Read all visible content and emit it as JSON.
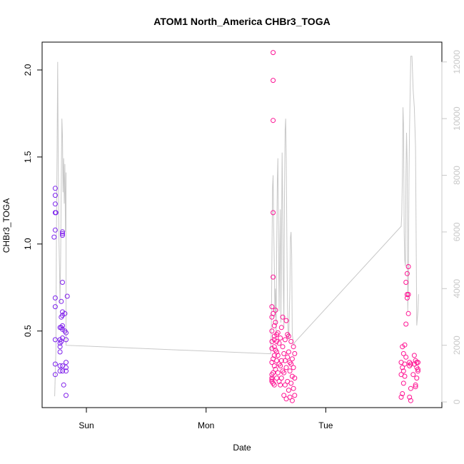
{
  "chart_data": {
    "type": "scatter",
    "title": "ATOM1 North_America CHBr3_TOGA",
    "xlabel": "Date",
    "ylabel": "CHBr3_TOGA",
    "x_ticks": [
      "Sun",
      "Mon",
      "Tue"
    ],
    "x_tick_days": [
      1,
      2,
      3
    ],
    "xlim": [
      0.63,
      3.97
    ],
    "ylim": [
      0.06,
      2.16
    ],
    "y_ticks": [
      0.5,
      1.0,
      1.5,
      2.0
    ],
    "y_tick_labels": [
      "0.5",
      "1.0",
      "1.5",
      "2.0"
    ],
    "y2lim": [
      -200,
      12700
    ],
    "y2_ticks": [
      0,
      2000,
      4000,
      6000,
      8000,
      10000,
      12000
    ],
    "y2_tick_labels": [
      "0",
      "2000",
      "4000",
      "6000",
      "8000",
      "10000",
      "12000"
    ],
    "grid": false,
    "colors": {
      "series_start": "#7a22ee",
      "series_end": "#ff1493",
      "line": "#c8c8c8",
      "axis": "#000000"
    },
    "series": [
      {
        "marker": "open-circle",
        "points": [
          [
            0.74,
            0.25
          ],
          [
            0.74,
            0.31
          ],
          [
            0.74,
            0.45
          ],
          [
            0.74,
            0.64
          ],
          [
            0.74,
            0.69
          ],
          [
            0.73,
            1.04
          ],
          [
            0.74,
            1.08
          ],
          [
            0.74,
            1.18
          ],
          [
            0.745,
            1.18
          ],
          [
            0.74,
            1.23
          ],
          [
            0.74,
            1.28
          ],
          [
            0.74,
            1.32
          ],
          [
            0.78,
            0.27
          ],
          [
            0.78,
            0.3
          ],
          [
            0.78,
            0.38
          ],
          [
            0.78,
            0.41
          ],
          [
            0.78,
            0.43
          ],
          [
            0.79,
            0.44
          ],
          [
            0.78,
            0.45
          ],
          [
            0.78,
            0.52
          ],
          [
            0.79,
            0.52
          ],
          [
            0.79,
            0.58
          ],
          [
            0.79,
            0.67
          ],
          [
            0.8,
            0.27
          ],
          [
            0.8,
            0.3
          ],
          [
            0.8,
            0.46
          ],
          [
            0.8,
            0.53
          ],
          [
            0.8,
            0.59
          ],
          [
            0.8,
            0.61
          ],
          [
            0.8,
            0.78
          ],
          [
            0.8,
            1.05
          ],
          [
            0.8,
            1.06
          ],
          [
            0.8,
            1.07
          ],
          [
            0.8,
            0.51
          ],
          [
            0.81,
            0.19
          ],
          [
            0.82,
            0.5
          ],
          [
            0.82,
            0.6
          ],
          [
            0.83,
            0.13
          ],
          [
            0.83,
            0.27
          ],
          [
            0.83,
            0.29
          ],
          [
            0.83,
            0.32
          ],
          [
            0.83,
            0.45
          ],
          [
            0.83,
            0.49
          ],
          [
            0.84,
            0.7
          ],
          [
            2.55,
            0.21
          ],
          [
            2.55,
            0.22
          ],
          [
            2.55,
            0.23
          ],
          [
            2.55,
            0.25
          ],
          [
            2.55,
            0.32
          ],
          [
            2.55,
            0.4
          ],
          [
            2.55,
            0.44
          ],
          [
            2.55,
            0.5
          ],
          [
            2.55,
            0.58
          ],
          [
            2.55,
            0.64
          ],
          [
            2.56,
            0.2
          ],
          [
            2.56,
            0.26
          ],
          [
            2.56,
            0.34
          ],
          [
            2.56,
            0.6
          ],
          [
            2.56,
            0.81
          ],
          [
            2.56,
            1.18
          ],
          [
            2.56,
            1.71
          ],
          [
            2.56,
            1.94
          ],
          [
            2.56,
            2.1
          ],
          [
            2.57,
            0.19
          ],
          [
            2.57,
            0.3
          ],
          [
            2.57,
            0.36
          ],
          [
            2.57,
            0.41
          ],
          [
            2.57,
            0.45
          ],
          [
            2.57,
            0.47
          ],
          [
            2.57,
            0.53
          ],
          [
            2.58,
            0.55
          ],
          [
            2.58,
            0.62
          ],
          [
            2.58,
            0.28
          ],
          [
            2.58,
            0.39
          ],
          [
            2.59,
            0.23
          ],
          [
            2.59,
            0.33
          ],
          [
            2.59,
            0.38
          ],
          [
            2.59,
            0.44
          ],
          [
            2.59,
            0.48
          ],
          [
            2.6,
            0.26
          ],
          [
            2.6,
            0.36
          ],
          [
            2.6,
            0.49
          ],
          [
            2.61,
            0.21
          ],
          [
            2.61,
            0.31
          ],
          [
            2.61,
            0.43
          ],
          [
            2.62,
            0.19
          ],
          [
            2.62,
            0.3
          ],
          [
            2.62,
            0.46
          ],
          [
            2.63,
            0.23
          ],
          [
            2.63,
            0.33
          ],
          [
            2.63,
            0.52
          ],
          [
            2.64,
            0.27
          ],
          [
            2.64,
            0.41
          ],
          [
            2.64,
            0.58
          ],
          [
            2.65,
            0.13
          ],
          [
            2.65,
            0.26
          ],
          [
            2.65,
            0.37
          ],
          [
            2.66,
            0.19
          ],
          [
            2.66,
            0.33
          ],
          [
            2.66,
            0.45
          ],
          [
            2.67,
            0.11
          ],
          [
            2.67,
            0.29
          ],
          [
            2.67,
            0.56
          ],
          [
            2.68,
            0.21
          ],
          [
            2.68,
            0.35
          ],
          [
            2.68,
            0.48
          ],
          [
            2.69,
            0.16
          ],
          [
            2.69,
            0.38
          ],
          [
            2.69,
            0.47
          ],
          [
            2.7,
            0.12
          ],
          [
            2.7,
            0.27
          ],
          [
            2.7,
            0.32
          ],
          [
            2.71,
            0.2
          ],
          [
            2.71,
            0.31
          ],
          [
            2.71,
            0.44
          ],
          [
            2.72,
            0.1
          ],
          [
            2.72,
            0.24
          ],
          [
            2.72,
            0.34
          ],
          [
            2.73,
            0.17
          ],
          [
            2.73,
            0.29
          ],
          [
            2.73,
            0.41
          ],
          [
            2.74,
            0.13
          ],
          [
            2.74,
            0.23
          ],
          [
            2.74,
            0.37
          ],
          [
            3.63,
            0.12
          ],
          [
            3.63,
            0.25
          ],
          [
            3.63,
            0.32
          ],
          [
            3.64,
            0.14
          ],
          [
            3.64,
            0.29
          ],
          [
            3.64,
            0.41
          ],
          [
            3.65,
            0.2
          ],
          [
            3.65,
            0.27
          ],
          [
            3.65,
            0.37
          ],
          [
            3.66,
            0.24
          ],
          [
            3.66,
            0.31
          ],
          [
            3.66,
            0.42
          ],
          [
            3.67,
            0.35
          ],
          [
            3.67,
            0.54
          ],
          [
            3.67,
            0.78
          ],
          [
            3.68,
            0.69
          ],
          [
            3.68,
            0.83
          ],
          [
            3.68,
            0.71
          ],
          [
            3.69,
            0.6
          ],
          [
            3.69,
            0.87
          ],
          [
            3.69,
            0.71
          ],
          [
            3.7,
            0.12
          ],
          [
            3.7,
            0.3
          ],
          [
            3.7,
            0.32
          ],
          [
            3.71,
            0.1
          ],
          [
            3.71,
            0.17
          ],
          [
            3.71,
            0.31
          ],
          [
            3.73,
            0.25
          ],
          [
            3.74,
            0.31
          ],
          [
            3.74,
            0.36
          ],
          [
            3.75,
            0.18
          ],
          [
            3.75,
            0.19
          ],
          [
            3.75,
            0.33
          ],
          [
            3.76,
            0.23
          ],
          [
            3.76,
            0.29
          ],
          [
            3.76,
            0.32
          ],
          [
            3.77,
            0.27
          ],
          [
            3.77,
            0.32
          ],
          [
            3.77,
            0.28
          ]
        ]
      },
      {
        "name": "line",
        "axis": "right",
        "points": [
          [
            0.735,
            200
          ],
          [
            0.745,
            1800
          ],
          [
            0.75,
            6000
          ],
          [
            0.755,
            9000
          ],
          [
            0.76,
            12000
          ],
          [
            0.765,
            8500
          ],
          [
            0.77,
            5800
          ],
          [
            0.775,
            4800
          ],
          [
            0.78,
            3500
          ],
          [
            0.785,
            5200
          ],
          [
            0.79,
            7600
          ],
          [
            0.795,
            10000
          ],
          [
            0.8,
            9400
          ],
          [
            0.805,
            7400
          ],
          [
            0.81,
            8600
          ],
          [
            0.815,
            7000
          ],
          [
            0.82,
            8400
          ],
          [
            0.825,
            6000
          ],
          [
            0.83,
            8100
          ],
          [
            0.83,
            2000
          ],
          [
            2.54,
            1700
          ],
          [
            2.545,
            2600
          ],
          [
            2.55,
            5000
          ],
          [
            2.555,
            7600
          ],
          [
            2.56,
            8000
          ],
          [
            2.565,
            6200
          ],
          [
            2.57,
            4800
          ],
          [
            2.575,
            3000
          ],
          [
            2.58,
            4000
          ],
          [
            2.585,
            2400
          ],
          [
            2.59,
            5500
          ],
          [
            2.595,
            7800
          ],
          [
            2.6,
            8600
          ],
          [
            2.605,
            6000
          ],
          [
            2.61,
            3200
          ],
          [
            2.615,
            5200
          ],
          [
            2.62,
            6800
          ],
          [
            2.625,
            2800
          ],
          [
            2.63,
            5400
          ],
          [
            2.635,
            8800
          ],
          [
            2.64,
            7000
          ],
          [
            2.645,
            4400
          ],
          [
            2.65,
            2600
          ],
          [
            2.655,
            7200
          ],
          [
            2.66,
            9600
          ],
          [
            2.665,
            10000
          ],
          [
            2.67,
            8600
          ],
          [
            2.675,
            5600
          ],
          [
            2.68,
            3400
          ],
          [
            2.685,
            2300
          ],
          [
            2.69,
            2200
          ],
          [
            2.695,
            3000
          ],
          [
            2.7,
            4000
          ],
          [
            2.705,
            5800
          ],
          [
            2.71,
            6000
          ],
          [
            2.715,
            5200
          ],
          [
            2.72,
            2400
          ],
          [
            2.725,
            2200
          ],
          [
            2.73,
            2000
          ],
          [
            2.74,
            2100
          ],
          [
            3.63,
            6200
          ],
          [
            3.635,
            6600
          ],
          [
            3.64,
            8000
          ],
          [
            3.645,
            10400
          ],
          [
            3.65,
            9800
          ],
          [
            3.655,
            6000
          ],
          [
            3.66,
            5000
          ],
          [
            3.665,
            4800
          ],
          [
            3.67,
            8000
          ],
          [
            3.675,
            9500
          ],
          [
            3.68,
            8400
          ],
          [
            3.685,
            3200
          ],
          [
            3.69,
            4200
          ],
          [
            3.695,
            7800
          ],
          [
            3.7,
            9600
          ],
          [
            3.705,
            11000
          ],
          [
            3.71,
            12200
          ],
          [
            3.72,
            12200
          ],
          [
            3.73,
            11000
          ],
          [
            3.74,
            10400
          ],
          [
            3.75,
            9000
          ],
          [
            3.76,
            2700
          ],
          [
            3.77,
            3200
          ],
          [
            3.775,
            3800
          ]
        ]
      }
    ]
  }
}
